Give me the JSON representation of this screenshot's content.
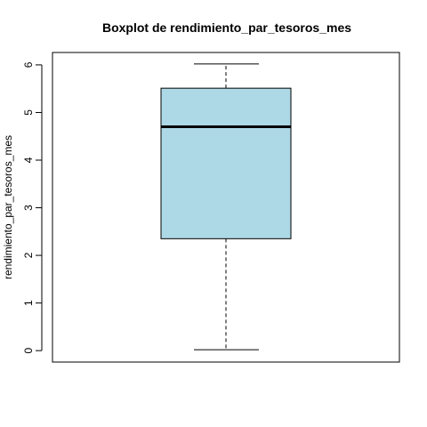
{
  "chart_data": {
    "type": "boxplot",
    "title": "Boxplot de rendimiento_par_tesoros_mes",
    "xlabel": "",
    "ylabel": "rendimiento_par_tesoros_mes",
    "ylim": [
      -0.24,
      6.26
    ],
    "yticks": [
      "0",
      "1",
      "2",
      "3",
      "4",
      "5",
      "6"
    ],
    "grid": false,
    "box_color": "#ADD8E6",
    "stats": {
      "min": 0.02,
      "q1": 2.35,
      "median": 4.7,
      "q3": 5.51,
      "max": 6.02
    }
  }
}
